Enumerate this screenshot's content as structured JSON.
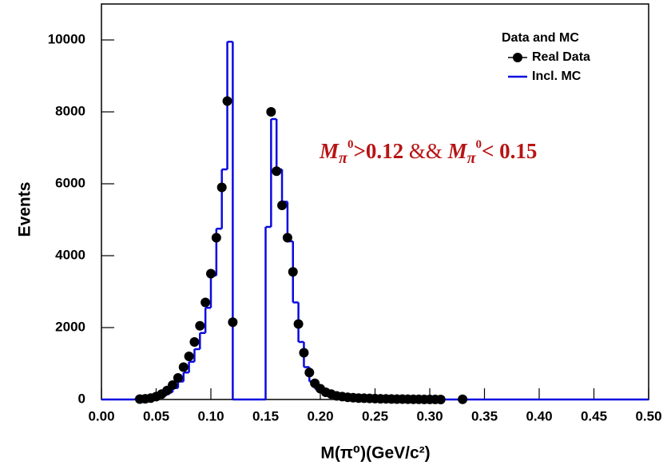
{
  "chart_data": {
    "type": "histogram",
    "x_label": "M(π⁰)(GeV/c²)",
    "y_label": "Events",
    "xlim": [
      0,
      0.5
    ],
    "ylim": [
      0,
      11000
    ],
    "xticks": [
      {
        "value": 0,
        "label": "0.00"
      },
      0.05,
      {
        "value": 0.1,
        "label": "0.10"
      },
      0.15,
      {
        "value": 0.2,
        "label": "0.20"
      },
      0.25,
      {
        "value": 0.3,
        "label": "0.30"
      },
      0.35,
      {
        "value": 0.4,
        "label": "0.40"
      },
      0.45,
      {
        "value": 0.5,
        "label": "0.50"
      }
    ],
    "yticks": [
      0,
      2000,
      4000,
      6000,
      8000,
      10000
    ],
    "legend_title": "Data and MC",
    "legend_position": "top-right",
    "annotation": [
      "M",
      "π",
      "0",
      ">0.12",
      " && ",
      "M",
      "π",
      "0",
      "< 0.15"
    ],
    "series": [
      {
        "name": "Real Data",
        "color": "#000000",
        "x": [
          0.035,
          0.04,
          0.045,
          0.05,
          0.055,
          0.06,
          0.065,
          0.07,
          0.075,
          0.08,
          0.085,
          0.09,
          0.095,
          0.1,
          0.105,
          0.11,
          0.115,
          0.12,
          0.155,
          0.16,
          0.165,
          0.17,
          0.175,
          0.18,
          0.185,
          0.19,
          0.195,
          0.2,
          0.205,
          0.21,
          0.215,
          0.22,
          0.225,
          0.23,
          0.235,
          0.24,
          0.245,
          0.25,
          0.255,
          0.26,
          0.265,
          0.27,
          0.275,
          0.28,
          0.285,
          0.29,
          0.295,
          0.3,
          0.305,
          0.31,
          0.33
        ],
        "values": [
          10,
          20,
          40,
          80,
          150,
          250,
          400,
          600,
          900,
          1200,
          1600,
          2050,
          2700,
          3500,
          4500,
          5900,
          8300,
          2150,
          8000,
          6350,
          5400,
          4500,
          3550,
          2100,
          1300,
          750,
          450,
          300,
          200,
          150,
          100,
          80,
          60,
          50,
          40,
          35,
          30,
          25,
          20,
          18,
          15,
          12,
          10,
          8,
          6,
          5,
          4,
          3,
          2,
          1,
          5
        ]
      },
      {
        "name": "Incl. MC",
        "color": "#0a0ae0",
        "bins": [
          0,
          0.03,
          0.035,
          0.04,
          0.045,
          0.05,
          0.055,
          0.06,
          0.065,
          0.07,
          0.075,
          0.08,
          0.085,
          0.09,
          0.095,
          0.1,
          0.105,
          0.11,
          0.115,
          0.12,
          0.15,
          0.155,
          0.16,
          0.165,
          0.17,
          0.175,
          0.18,
          0.185,
          0.19,
          0.195,
          0.2,
          0.205,
          0.21,
          0.215,
          0.22,
          0.225,
          0.23,
          0.235,
          0.24,
          0.5
        ],
        "values": [
          0,
          5,
          10,
          20,
          40,
          70,
          120,
          200,
          320,
          500,
          750,
          1050,
          1400,
          1850,
          2550,
          3450,
          4750,
          6400,
          9950,
          0,
          4800,
          7800,
          6400,
          5500,
          4400,
          2700,
          1600,
          900,
          500,
          300,
          200,
          130,
          90,
          60,
          40,
          25,
          15,
          10,
          0
        ]
      }
    ]
  }
}
